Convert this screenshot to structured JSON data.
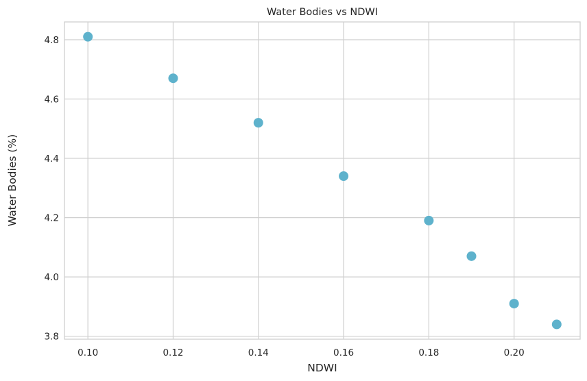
{
  "chart_data": {
    "type": "scatter",
    "title": "Water Bodies vs NDWI",
    "xlabel": "NDWI",
    "ylabel": "Water Bodies (%)",
    "x": [
      0.1,
      0.12,
      0.14,
      0.16,
      0.18,
      0.19,
      0.2,
      0.21
    ],
    "y": [
      4.81,
      4.67,
      4.52,
      4.34,
      4.19,
      4.07,
      3.91,
      3.84
    ],
    "xlim": [
      0.0945,
      0.2155
    ],
    "ylim": [
      3.79,
      4.86
    ],
    "xticks": [
      "0.10",
      "0.12",
      "0.14",
      "0.16",
      "0.18",
      "0.20"
    ],
    "yticks": [
      "3.8",
      "4.0",
      "4.2",
      "4.4",
      "4.6",
      "4.8"
    ],
    "grid": true,
    "marker_color": "#5eb2cc",
    "grid_color": "#cfcfcf"
  }
}
